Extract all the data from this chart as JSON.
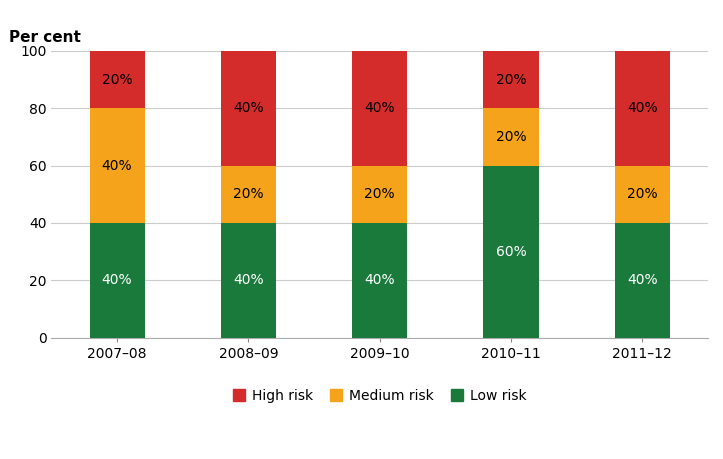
{
  "categories": [
    "2007–08",
    "2008–09",
    "2009–10",
    "2010–11",
    "2011–12"
  ],
  "low_risk": [
    40,
    40,
    40,
    60,
    40
  ],
  "medium_risk": [
    40,
    20,
    20,
    20,
    20
  ],
  "high_risk": [
    20,
    40,
    40,
    20,
    40
  ],
  "low_labels": [
    "40%",
    "40%",
    "40%",
    "60%",
    "40%"
  ],
  "medium_labels": [
    "40%",
    "20%",
    "20%",
    "20%",
    "20%"
  ],
  "high_labels": [
    "20%",
    "40%",
    "40%",
    "20%",
    "40%"
  ],
  "colors": {
    "low": "#1a7a3c",
    "medium": "#f5a31a",
    "high": "#d42b2b"
  },
  "ylabel": "Per cent",
  "ylim": [
    0,
    100
  ],
  "yticks": [
    0,
    20,
    40,
    60,
    80,
    100
  ],
  "legend_labels": [
    "High risk",
    "Medium risk",
    "Low risk"
  ],
  "label_color_low": "#ffffff",
  "label_color_medium": "#000000",
  "label_color_high": "#000000",
  "label_fontsize": 10,
  "tick_fontsize": 10,
  "ylabel_fontsize": 11,
  "bar_width": 0.42
}
